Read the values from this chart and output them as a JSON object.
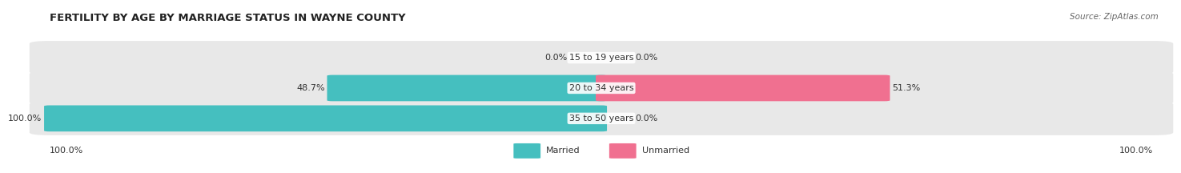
{
  "title": "FERTILITY BY AGE BY MARRIAGE STATUS IN WAYNE COUNTY",
  "source": "Source: ZipAtlas.com",
  "categories": [
    "15 to 19 years",
    "20 to 34 years",
    "35 to 50 years"
  ],
  "married_values": [
    0.0,
    48.7,
    100.0
  ],
  "unmarried_values": [
    0.0,
    51.3,
    0.0
  ],
  "max_value": 100.0,
  "married_color": "#45BFBF",
  "unmarried_color": "#F07090",
  "bar_bg_color": "#E8E8E8",
  "title_fontsize": 9.5,
  "label_fontsize": 8,
  "category_fontsize": 8,
  "source_fontsize": 7.5,
  "axis_label_left": "100.0%",
  "axis_label_right": "100.0%",
  "fig_bg_color": "#FFFFFF"
}
